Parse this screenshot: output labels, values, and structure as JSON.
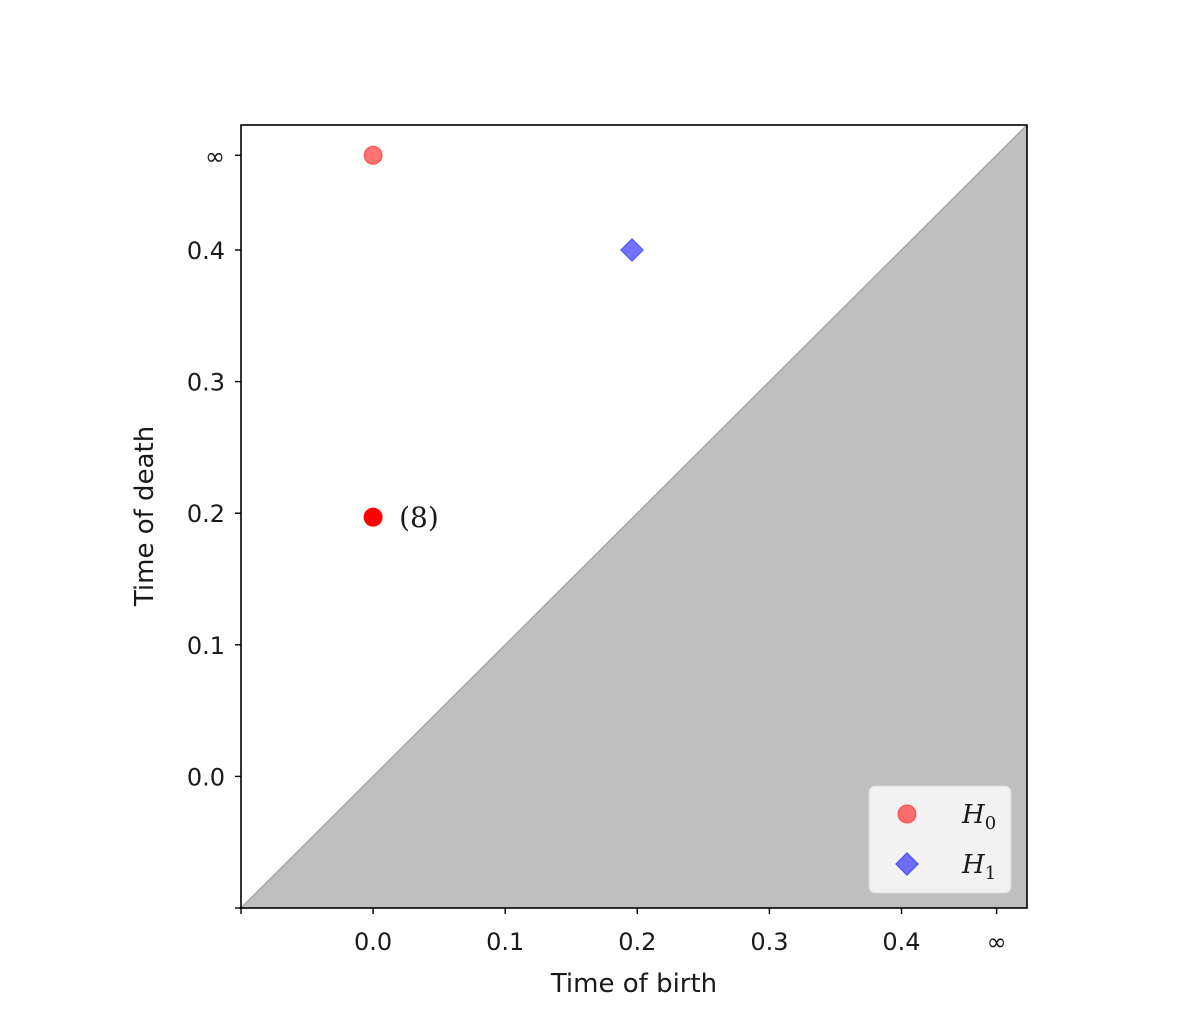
{
  "chart_data": {
    "type": "scatter",
    "xlabel": "Time of birth",
    "ylabel": "Time of death",
    "xlim": [
      -0.1,
      0.495
    ],
    "ylim": [
      -0.1,
      0.495
    ],
    "infinity_value": 0.472,
    "infinity_label": "∞",
    "x_ticks": [
      {
        "value": 0.0,
        "label": "0.0"
      },
      {
        "value": 0.1,
        "label": "0.1"
      },
      {
        "value": 0.2,
        "label": "0.2"
      },
      {
        "value": 0.3,
        "label": "0.3"
      },
      {
        "value": 0.4,
        "label": "0.4"
      }
    ],
    "y_ticks": [
      {
        "value": 0.0,
        "label": "0.0"
      },
      {
        "value": 0.1,
        "label": "0.1"
      },
      {
        "value": 0.2,
        "label": "0.2"
      },
      {
        "value": 0.3,
        "label": "0.3"
      },
      {
        "value": 0.4,
        "label": "0.4"
      }
    ],
    "series": [
      {
        "name": "H0",
        "marker": "circle",
        "color": "#ff0000",
        "points": [
          {
            "x": 0.0,
            "y": 0.472,
            "infinite": true,
            "opacity": 0.55
          },
          {
            "x": 0.0,
            "y": 0.197,
            "opacity": 1.0,
            "multiplicity_label": "(8)"
          }
        ]
      },
      {
        "name": "H1",
        "marker": "diamond",
        "color": "#0000ff",
        "points": [
          {
            "x": 0.196,
            "y": 0.4,
            "opacity": 0.55
          }
        ]
      }
    ],
    "diagonal_fill_color": "#bfbfbf",
    "grid": false,
    "legend_position": "bottom-right",
    "legend": [
      {
        "base": "H",
        "sub": "0",
        "marker": "circle",
        "color": "#ff0000"
      },
      {
        "base": "H",
        "sub": "1",
        "marker": "diamond",
        "color": "#0000ff"
      }
    ]
  }
}
